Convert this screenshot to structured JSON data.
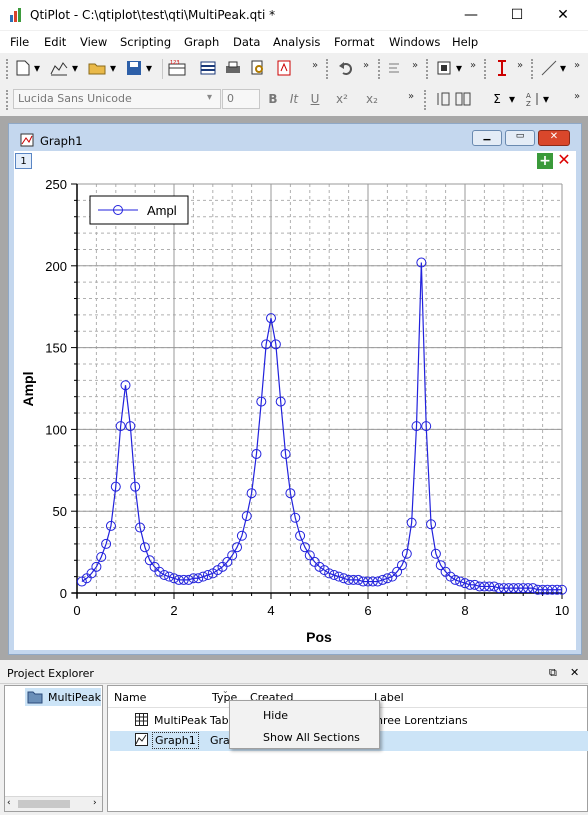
{
  "window": {
    "title": "QtiPlot - C:\\qtiplot\\test\\qti\\MultiPeak.qti *",
    "minimize": "—",
    "maximize": "☐",
    "close": "✕"
  },
  "menu": [
    "File",
    "Edit",
    "View",
    "Scripting",
    "Graph",
    "Data",
    "Analysis",
    "Format",
    "Windows",
    "Help"
  ],
  "format_toolbar": {
    "font": "Lucida Sans Unicode",
    "size": "0",
    "bold": "B",
    "italic": "It",
    "underline": "U",
    "superscript": "x²",
    "subscript": "x₂"
  },
  "graph_window": {
    "title": "Graph1",
    "layer": "1"
  },
  "chart_data": {
    "type": "line",
    "xlabel": "Pos",
    "ylabel": "Ampl",
    "xlim": [
      0,
      10
    ],
    "ylim": [
      0,
      250
    ],
    "xticks": [
      "0",
      "2",
      "4",
      "6",
      "8",
      "10"
    ],
    "yticks": [
      "0",
      "50",
      "100",
      "150",
      "200",
      "250"
    ],
    "legend": {
      "position": "top-left",
      "entries": [
        "Ampl"
      ]
    },
    "grid": true,
    "series": [
      {
        "name": "Ampl",
        "color": "#2222dd",
        "x": [
          0.1,
          0.2,
          0.3,
          0.4,
          0.5,
          0.6,
          0.7,
          0.8,
          0.9,
          1.0,
          1.1,
          1.2,
          1.3,
          1.4,
          1.5,
          1.6,
          1.7,
          1.8,
          1.9,
          2.0,
          2.1,
          2.2,
          2.3,
          2.4,
          2.5,
          2.6,
          2.7,
          2.8,
          2.9,
          3.0,
          3.1,
          3.2,
          3.3,
          3.4,
          3.5,
          3.6,
          3.7,
          3.8,
          3.9,
          4.0,
          4.1,
          4.2,
          4.3,
          4.4,
          4.5,
          4.6,
          4.7,
          4.8,
          4.9,
          5.0,
          5.1,
          5.2,
          5.3,
          5.4,
          5.5,
          5.6,
          5.7,
          5.8,
          5.9,
          6.0,
          6.1,
          6.2,
          6.3,
          6.4,
          6.5,
          6.6,
          6.7,
          6.8,
          6.9,
          7.0,
          7.1,
          7.2,
          7.3,
          7.4,
          7.5,
          7.6,
          7.7,
          7.8,
          7.9,
          8.0,
          8.1,
          8.2,
          8.3,
          8.4,
          8.5,
          8.6,
          8.7,
          8.8,
          8.9,
          9.0,
          9.1,
          9.2,
          9.3,
          9.4,
          9.5,
          9.6,
          9.7,
          9.8,
          9.9,
          10.0
        ],
        "values": [
          7,
          9,
          12,
          16,
          22,
          30,
          41,
          65,
          102,
          127,
          102,
          65,
          40,
          28,
          20,
          16,
          13,
          11,
          10,
          9,
          8,
          8,
          8,
          9,
          9,
          10,
          11,
          12,
          14,
          16,
          19,
          23,
          28,
          35,
          47,
          61,
          85,
          117,
          152,
          168,
          152,
          117,
          85,
          61,
          46,
          35,
          28,
          23,
          19,
          16,
          14,
          12,
          11,
          10,
          9,
          8,
          8,
          8,
          7,
          7,
          7,
          7,
          8,
          9,
          10,
          13,
          17,
          24,
          43,
          102,
          202,
          102,
          42,
          24,
          17,
          13,
          10,
          8,
          7,
          6,
          5,
          5,
          4,
          4,
          4,
          4,
          3,
          3,
          3,
          3,
          3,
          3,
          3,
          3,
          2,
          2,
          2,
          2,
          2,
          2
        ]
      }
    ]
  },
  "project_explorer": {
    "title": "Project Explorer",
    "folder": "MultiPeak",
    "columns": [
      "Name",
      "Type",
      "Created",
      "Label"
    ],
    "rows": [
      {
        "name": "MultiPeak",
        "type": "Tab",
        "label": "hree Lorentzians"
      },
      {
        "name": "Graph1",
        "type": "Gra",
        "label": ""
      }
    ],
    "context_menu": [
      "Hide",
      "Show All Sections"
    ]
  }
}
